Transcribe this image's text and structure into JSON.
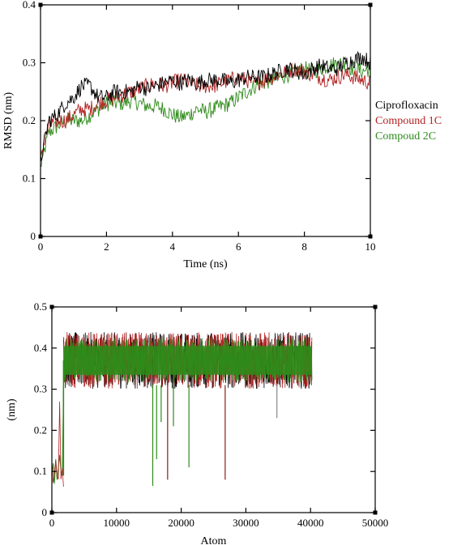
{
  "chart_data": [
    {
      "type": "line",
      "title": "",
      "xlabel": "Time (ns)",
      "ylabel": "RMSD (nm)",
      "xlim": [
        0,
        10
      ],
      "ylim": [
        0,
        0.4
      ],
      "xticks": [
        "0",
        "2",
        "4",
        "6",
        "8",
        "10"
      ],
      "yticks": [
        "0",
        "0.1",
        "0.2",
        "0.3",
        "0.4"
      ],
      "grid": false,
      "legend": "right-outside",
      "x": [
        0,
        0.25,
        0.5,
        0.75,
        1,
        1.25,
        1.5,
        1.75,
        2,
        2.25,
        2.5,
        2.75,
        3,
        3.25,
        3.5,
        3.75,
        4,
        4.25,
        4.5,
        4.75,
        5,
        5.25,
        5.5,
        5.75,
        6,
        6.25,
        6.5,
        6.75,
        7,
        7.25,
        7.5,
        7.75,
        8,
        8.25,
        8.5,
        8.75,
        9,
        9.25,
        9.5,
        9.75,
        10
      ],
      "series": [
        {
          "name": "Ciprofloxacin",
          "color": "#000000",
          "values": [
            0.13,
            0.2,
            0.21,
            0.23,
            0.24,
            0.26,
            0.26,
            0.24,
            0.24,
            0.25,
            0.25,
            0.25,
            0.26,
            0.255,
            0.26,
            0.265,
            0.27,
            0.265,
            0.27,
            0.265,
            0.27,
            0.27,
            0.27,
            0.265,
            0.27,
            0.275,
            0.275,
            0.275,
            0.28,
            0.285,
            0.29,
            0.285,
            0.28,
            0.29,
            0.295,
            0.29,
            0.29,
            0.3,
            0.305,
            0.31,
            0.3
          ]
        },
        {
          "name": "Compound 1C",
          "color": "#b22222",
          "values": [
            0.14,
            0.19,
            0.2,
            0.2,
            0.21,
            0.22,
            0.22,
            0.23,
            0.235,
            0.24,
            0.245,
            0.25,
            0.255,
            0.26,
            0.265,
            0.26,
            0.265,
            0.27,
            0.265,
            0.26,
            0.26,
            0.26,
            0.265,
            0.27,
            0.275,
            0.27,
            0.265,
            0.27,
            0.275,
            0.28,
            0.285,
            0.29,
            0.285,
            0.28,
            0.275,
            0.27,
            0.275,
            0.28,
            0.275,
            0.27,
            0.265
          ]
        },
        {
          "name": "Compoud 2C",
          "color": "#2e8b1a",
          "values": [
            0.12,
            0.18,
            0.19,
            0.2,
            0.2,
            0.2,
            0.21,
            0.22,
            0.23,
            0.23,
            0.23,
            0.235,
            0.23,
            0.225,
            0.225,
            0.22,
            0.21,
            0.205,
            0.21,
            0.22,
            0.215,
            0.22,
            0.225,
            0.23,
            0.24,
            0.25,
            0.26,
            0.265,
            0.27,
            0.275,
            0.28,
            0.285,
            0.29,
            0.285,
            0.29,
            0.295,
            0.3,
            0.295,
            0.29,
            0.285,
            0.29
          ]
        }
      ]
    },
    {
      "type": "line",
      "title": "",
      "xlabel": "Atom",
      "ylabel": "(nm)",
      "xlim": [
        0,
        50000
      ],
      "ylim": [
        0,
        0.5
      ],
      "xticks": [
        "0",
        "10000",
        "20000",
        "30000",
        "40000",
        "50000"
      ],
      "yticks": [
        "0",
        "0.1",
        "0.2",
        "0.3",
        "0.4",
        "0.5"
      ],
      "grid": false,
      "legend": "none",
      "band": {
        "x_start": 1800,
        "x_end": 40200,
        "y_low": 0.31,
        "y_high": 0.43,
        "mean": 0.37,
        "color": "#2e8b1a"
      },
      "initial_segment": {
        "x": [
          0,
          200,
          400,
          600,
          800,
          1000,
          1200,
          1400,
          1600,
          1800
        ],
        "values": [
          0.09,
          0.12,
          0.07,
          0.13,
          0.08,
          0.11,
          0.14,
          0.1,
          0.09,
          0.3
        ]
      },
      "dips": [
        {
          "x": 15600,
          "value": 0.065,
          "color": "#2e8b1a"
        },
        {
          "x": 16200,
          "value": 0.13,
          "color": "#2e8b1a"
        },
        {
          "x": 16900,
          "value": 0.22,
          "color": "#2e8b1a"
        },
        {
          "x": 17900,
          "value": 0.08,
          "color": "#8b1a1a"
        },
        {
          "x": 18800,
          "value": 0.21,
          "color": "#2e8b1a"
        },
        {
          "x": 21200,
          "value": 0.11,
          "color": "#2e8b1a"
        },
        {
          "x": 26800,
          "value": 0.08,
          "color": "#8b1a1a"
        },
        {
          "x": 34800,
          "value": 0.23,
          "color": "#888888"
        }
      ],
      "series": [
        {
          "name": "",
          "color": "#000000"
        },
        {
          "name": "",
          "color": "#b22222"
        },
        {
          "name": "",
          "color": "#2e8b1a"
        }
      ]
    }
  ]
}
